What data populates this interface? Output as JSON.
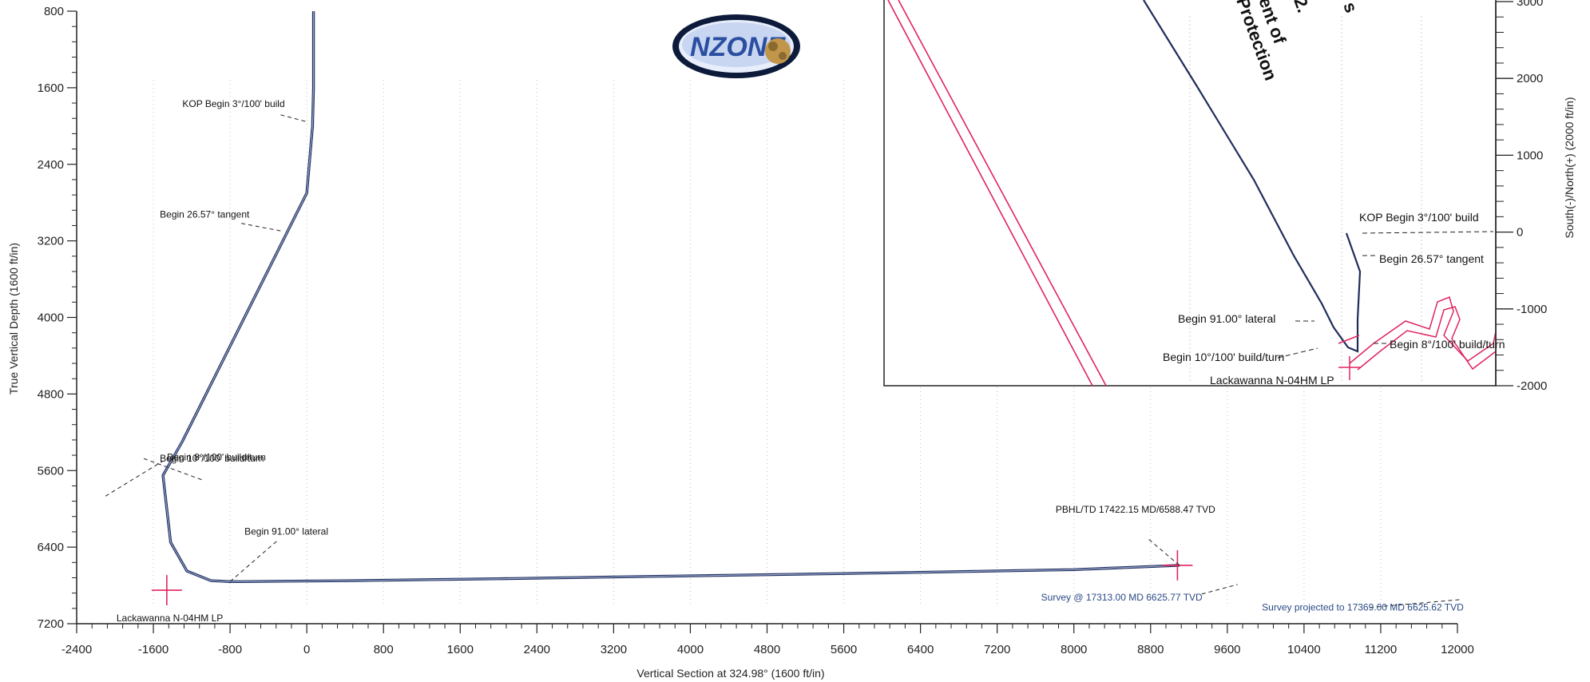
{
  "logo": {
    "text": "NZONE"
  },
  "partial_text": [
    "s",
    "2.",
    "ent of",
    "Protection"
  ],
  "colors": {
    "wellpath": "#1f2d5c",
    "target": "#e0245e",
    "blue_text": "#2b4a86",
    "grid": "#bfbfbf"
  },
  "chart_data": [
    {
      "type": "line",
      "title": "",
      "xlabel": "Vertical Section at 324.98° (1600 ft/in)",
      "ylabel": "True Vertical Depth (1600 ft/in)",
      "xlim": [
        -2400,
        12000
      ],
      "ylim": [
        7200,
        800
      ],
      "x_ticks": [
        "-2400",
        "-1600",
        "-800",
        "0",
        "800",
        "1600",
        "2400",
        "3200",
        "4000",
        "4800",
        "5600",
        "6400",
        "7200",
        "8000",
        "8800",
        "9600",
        "10400",
        "11200",
        "12000"
      ],
      "y_ticks": [
        "800",
        "1600",
        "2400",
        "3200",
        "4000",
        "4800",
        "5600",
        "6400",
        "7200"
      ],
      "grid": true,
      "series": [
        {
          "x": [
            70,
            70,
            60,
            0,
            -200,
            -400,
            -700,
            -1000,
            -1300,
            -1500,
            -1420,
            -1250,
            -1000,
            -800,
            -700,
            500,
            2000,
            4000,
            6000,
            8000,
            9100
          ],
          "y": [
            800,
            1600,
            2000,
            2700,
            3100,
            3500,
            4100,
            4700,
            5300,
            5650,
            6350,
            6650,
            6750,
            6760,
            6760,
            6750,
            6730,
            6700,
            6670,
            6635,
            6590
          ]
        }
      ],
      "markers": [
        {
          "name": "Lackawanna N-04HM LP",
          "x": -1460,
          "y": 6850
        },
        {
          "name": "PBHL",
          "x": 9080,
          "y": 6590
        }
      ],
      "annotations": [
        {
          "text": "KOP Begin 3°/100' build",
          "x": 60,
          "y": 2000
        },
        {
          "text": "Begin 26.57° tangent",
          "x": -200,
          "y": 3100
        },
        {
          "text": "Begin 8°/100' build/turn",
          "x": -1350,
          "y": 5550
        },
        {
          "text": "Begin 10°/100' build/turn",
          "x": -1500,
          "y": 5750
        },
        {
          "text": "Begin 91.00° lateral",
          "x": -800,
          "y": 6760
        },
        {
          "text": "Lackawanna N-04HM LP",
          "x": -1460,
          "y": 6850
        },
        {
          "text": "PBHL/TD 17422.15 MD/6588.47 TVD",
          "x": 9100,
          "y": 6590
        },
        {
          "text": "Survey @ 17313.00 MD 6625.77 TVD",
          "x": 8000,
          "y": 6640
        },
        {
          "text": "Survey projected to 17369.00 MD 6625.62 TVD",
          "x": 9000,
          "y": 6630
        }
      ]
    },
    {
      "type": "line",
      "title": "",
      "ylabel": "South(-)/North(+) (2000 ft/in)",
      "ylim": [
        -2000,
        3000
      ],
      "y_ticks": [
        "3000",
        "2000",
        "1000",
        "0",
        "-1000",
        "-2000"
      ],
      "grid": false,
      "annotations": [
        {
          "text": "KOP Begin 3°/100' build"
        },
        {
          "text": "Begin 26.57° tangent"
        },
        {
          "text": "Begin 91.00° lateral"
        },
        {
          "text": "Begin 8°/100' build/turn"
        },
        {
          "text": "Begin 10°/100' build/turn"
        },
        {
          "text": "Lackawanna N-04HM LP"
        }
      ]
    }
  ]
}
